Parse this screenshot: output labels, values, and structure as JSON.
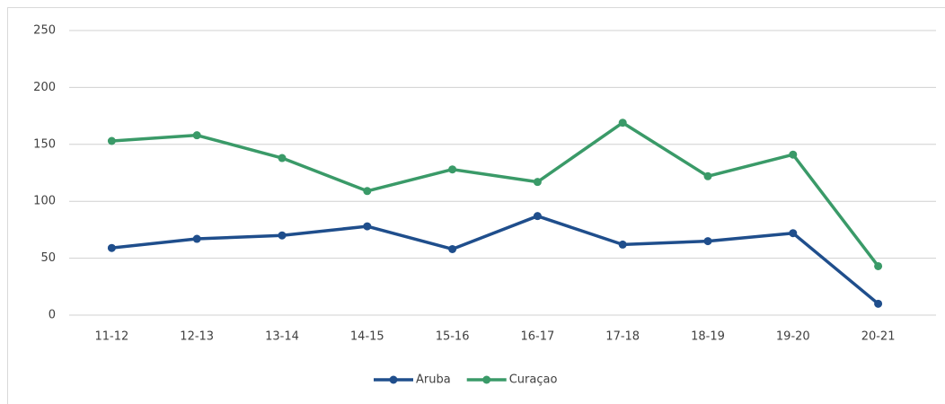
{
  "chart_data": {
    "type": "line",
    "categories": [
      "11-12",
      "12-13",
      "13-14",
      "14-15",
      "15-16",
      "16-17",
      "17-18",
      "18-19",
      "19-20",
      "20-21"
    ],
    "series": [
      {
        "name": "Aruba",
        "color": "#1f4e8c",
        "values": [
          59,
          67,
          70,
          78,
          58,
          87,
          62,
          65,
          72,
          10
        ]
      },
      {
        "name": "Curaçao",
        "color": "#3a9a68",
        "values": [
          153,
          158,
          138,
          109,
          128,
          117,
          169,
          122,
          141,
          43
        ]
      }
    ],
    "ylim": [
      0,
      250
    ],
    "yticks": [
      0,
      50,
      100,
      150,
      200,
      250
    ],
    "grid": true,
    "legend": "bottom"
  }
}
